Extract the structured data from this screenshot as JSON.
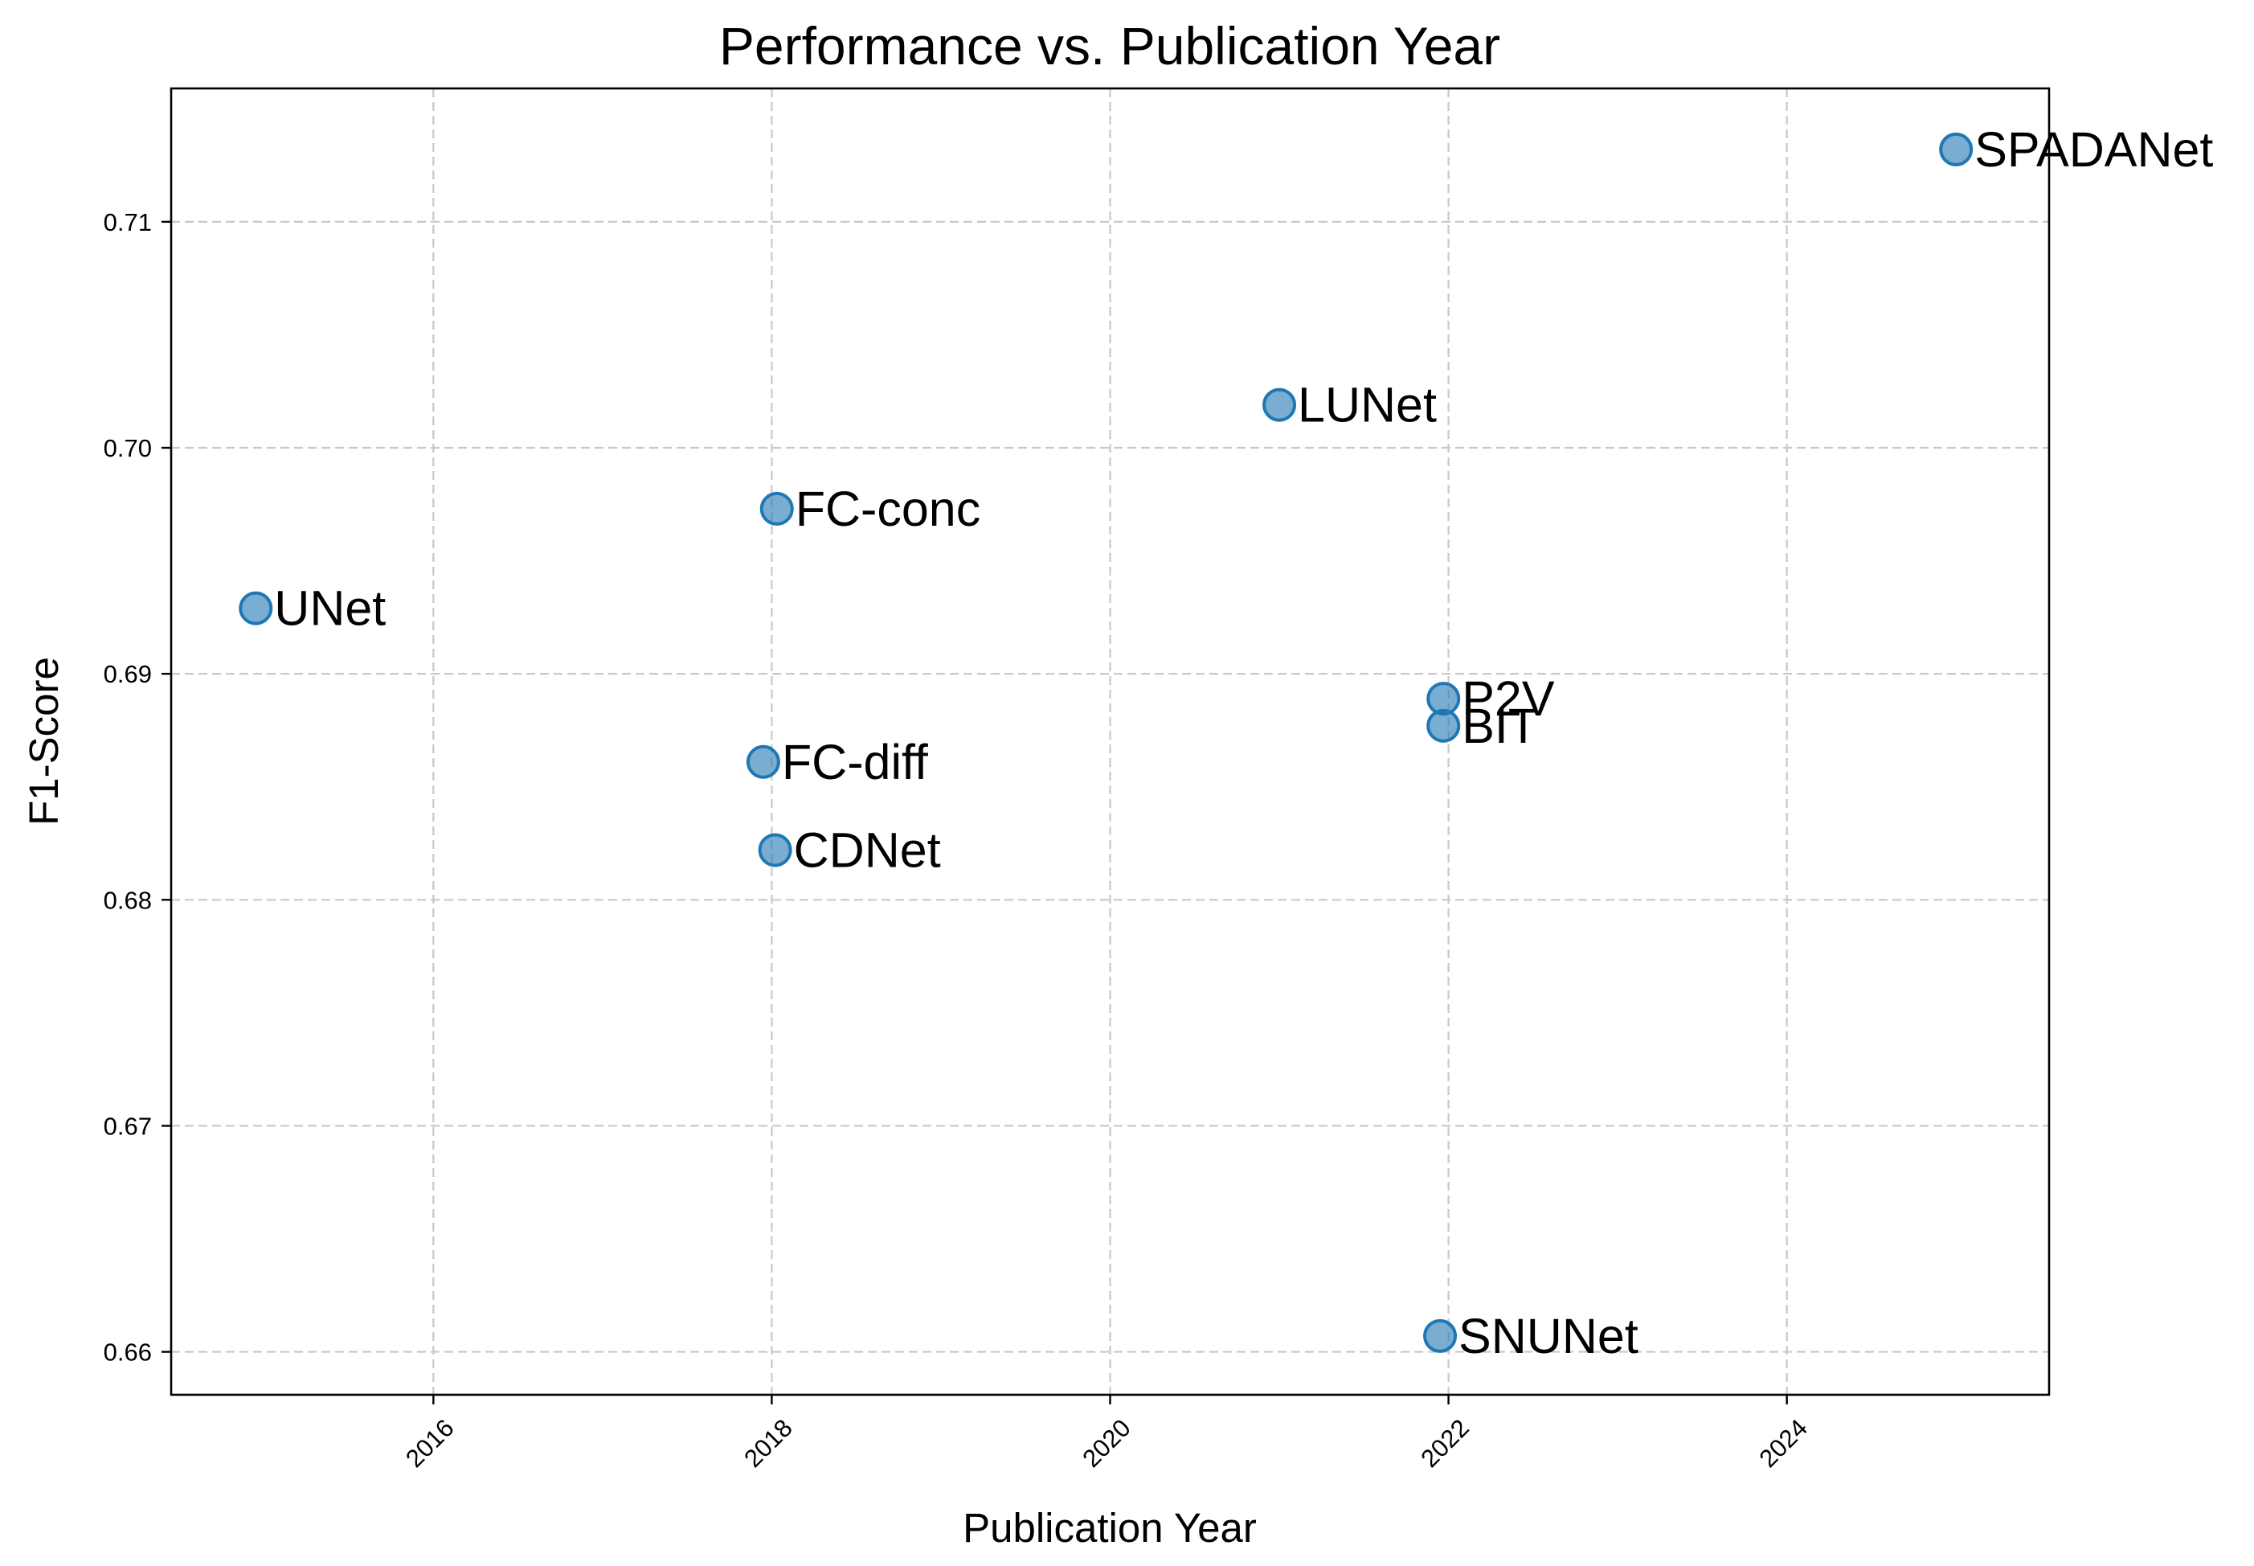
{
  "chart_data": {
    "type": "scatter",
    "title": "Performance vs. Publication Year",
    "xlabel": "Publication Year",
    "ylabel": "F1-Score",
    "xlim": [
      2014.45,
      2025.55
    ],
    "ylim": [
      0.6581,
      0.7159
    ],
    "xticks": [
      "2016",
      "2018",
      "2020",
      "2022",
      "2024"
    ],
    "yticks": [
      "0.66",
      "0.67",
      "0.68",
      "0.69",
      "0.70",
      "0.71"
    ],
    "grid": true,
    "point_color": "#1f77b4",
    "points": [
      {
        "label": "UNet",
        "x": 2014.95,
        "y": 0.6929
      },
      {
        "label": "FC-conc",
        "x": 2018.03,
        "y": 0.6973
      },
      {
        "label": "FC-diff",
        "x": 2017.95,
        "y": 0.6861
      },
      {
        "label": "CDNet",
        "x": 2018.02,
        "y": 0.6822
      },
      {
        "label": "LUNet",
        "x": 2021.0,
        "y": 0.7019
      },
      {
        "label": "P2V",
        "x": 2021.97,
        "y": 0.6889
      },
      {
        "label": "BIT",
        "x": 2021.97,
        "y": 0.6877
      },
      {
        "label": "SNUNet",
        "x": 2021.95,
        "y": 0.6607
      },
      {
        "label": "SPADANet",
        "x": 2025.0,
        "y": 0.7132
      }
    ]
  }
}
